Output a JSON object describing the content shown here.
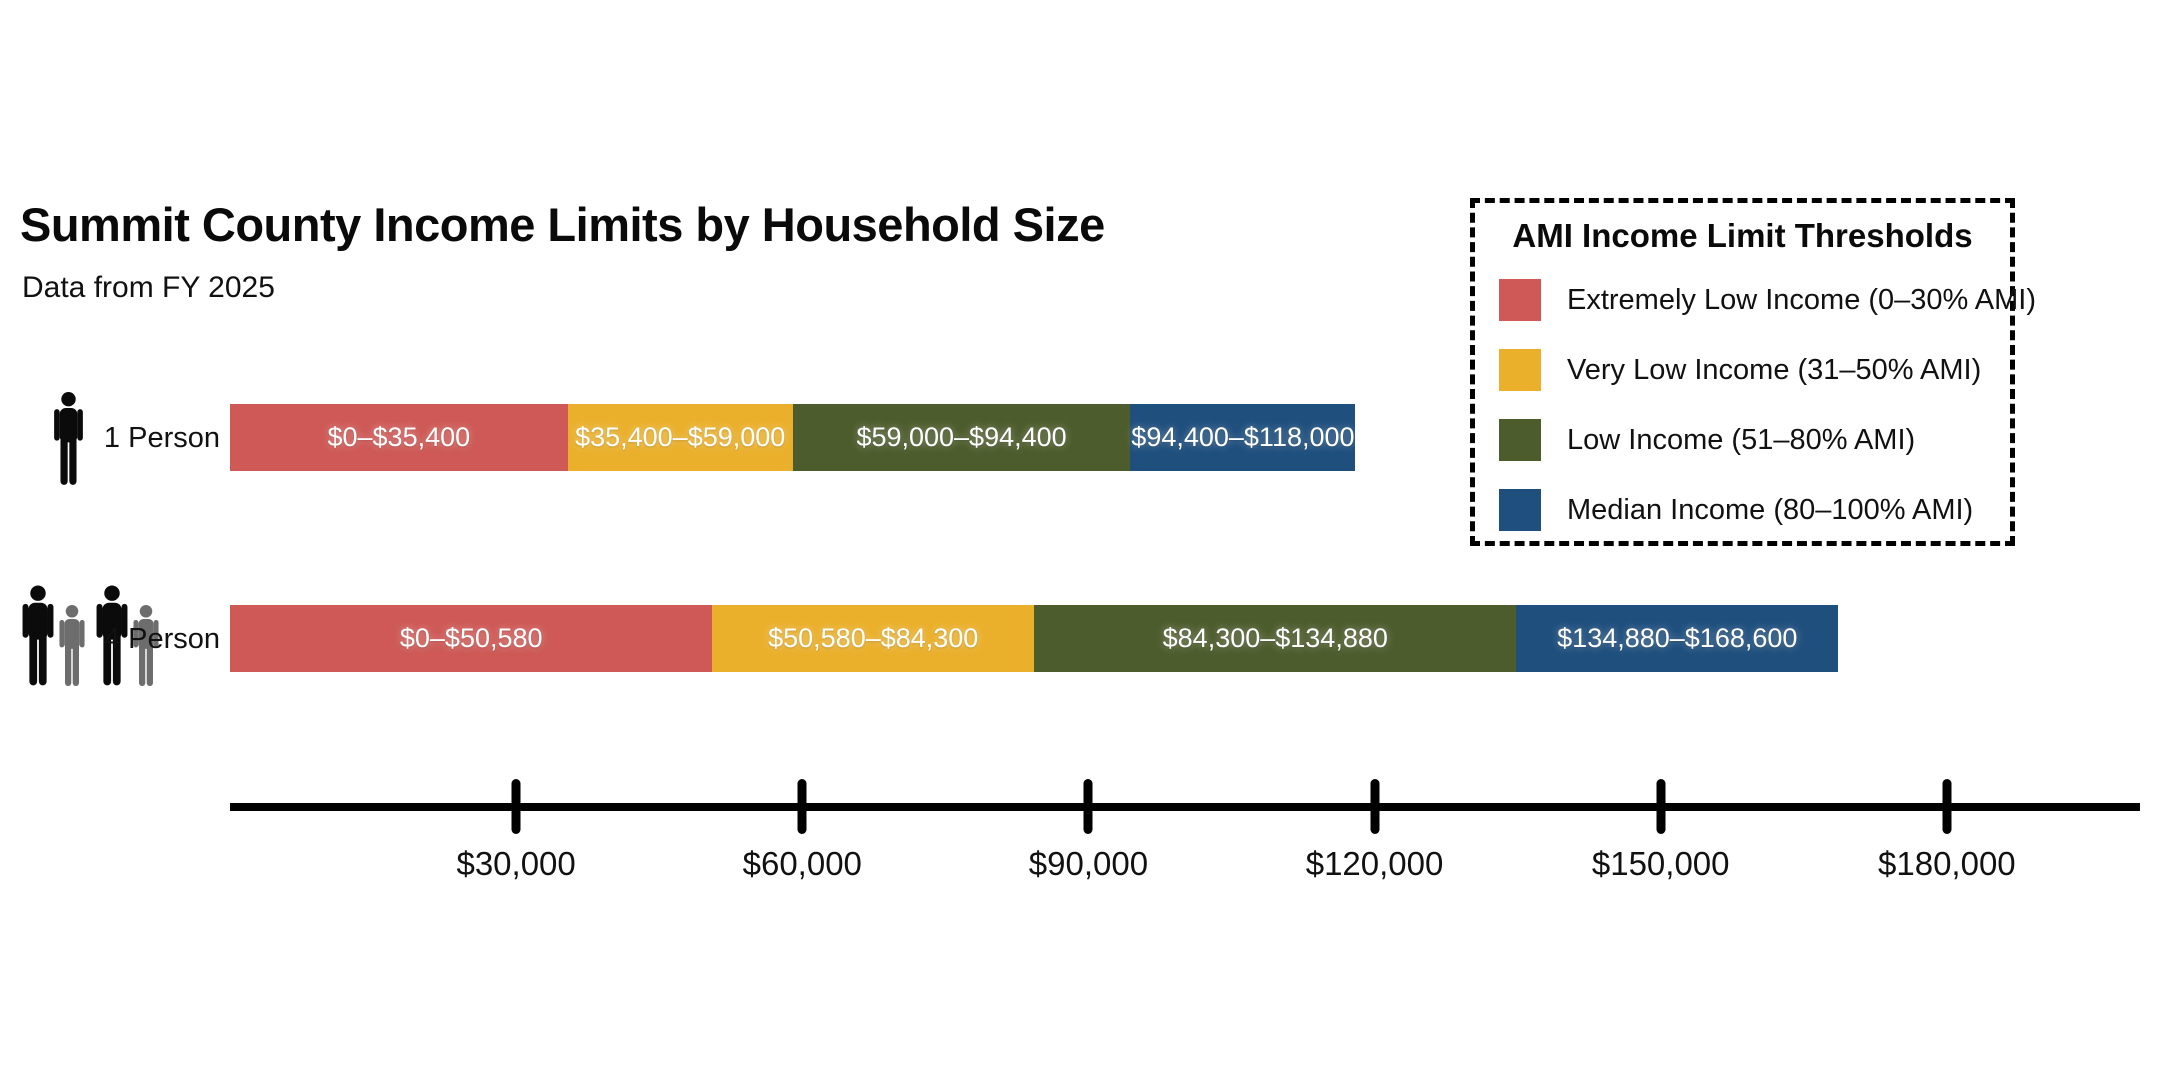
{
  "title": "Summit County Income Limits by Household Size",
  "subtitle": "Data from FY 2025",
  "legend": {
    "title": "AMI Income Limit Thresholds",
    "items": [
      {
        "label": "Extremely Low Income (0–30% AMI)",
        "color": "#CE5956"
      },
      {
        "label": "Very Low Income (31–50% AMI)",
        "color": "#EAB02C"
      },
      {
        "label": "Low Income (51–80% AMI)",
        "color": "#4D5C2D"
      },
      {
        "label": "Median Income (80–100% AMI)",
        "color": "#1F4F7D"
      }
    ]
  },
  "icon_colors": {
    "black": "#0b0b0b",
    "gray": "#6d6d6d"
  },
  "chart_data": {
    "type": "bar",
    "stacked": true,
    "orientation": "horizontal",
    "title": "Summit County Income Limits by Household Size",
    "subtitle": "Data from FY 2025",
    "unit": "USD",
    "legend_position": "top-right",
    "grid": false,
    "categories": [
      "1 Person",
      "4 Person"
    ],
    "rows": [
      {
        "category": "1 Person",
        "icons": [
          "person-adult-black"
        ],
        "segments": [
          {
            "series": "Extremely Low Income (0–30% AMI)",
            "start": 0,
            "end": 35400,
            "label": "$0–$35,400"
          },
          {
            "series": "Very Low Income (31–50% AMI)",
            "start": 35400,
            "end": 59000,
            "label": "$35,400–$59,000"
          },
          {
            "series": "Low Income (51–80% AMI)",
            "start": 59000,
            "end": 94400,
            "label": "$59,000–$94,400"
          },
          {
            "series": "Median Income (80–100% AMI)",
            "start": 94400,
            "end": 118000,
            "label": "$94,400–$118,000"
          }
        ]
      },
      {
        "category": "4 Person",
        "icons": [
          "person-adult-black",
          "person-small-gray",
          "person-adult-black",
          "person-small-gray"
        ],
        "segments": [
          {
            "series": "Extremely Low Income (0–30% AMI)",
            "start": 0,
            "end": 50580,
            "label": "$0–$50,580"
          },
          {
            "series": "Very Low Income (31–50% AMI)",
            "start": 50580,
            "end": 84300,
            "label": "$50,580–$84,300"
          },
          {
            "series": "Low Income (51–80% AMI)",
            "start": 84300,
            "end": 134880,
            "label": "$84,300–$134,880"
          },
          {
            "series": "Median Income (80–100% AMI)",
            "start": 134880,
            "end": 168600,
            "label": "$134,880–$168,600"
          }
        ]
      }
    ],
    "x_axis": {
      "min": 0,
      "max": 200000,
      "ticks": [
        30000,
        60000,
        90000,
        120000,
        150000,
        180000
      ],
      "tick_labels": [
        "$30,000",
        "$60,000",
        "$90,000",
        "$120,000",
        "$150,000",
        "$180,000"
      ]
    }
  }
}
